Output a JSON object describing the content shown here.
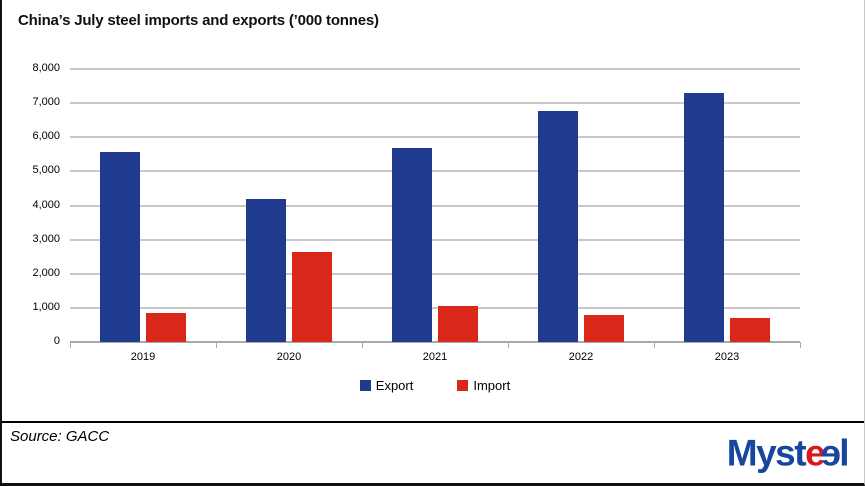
{
  "title": "China’s July steel imports and exports (’000 tonnes)",
  "chart_data": {
    "type": "bar",
    "title": "China’s July steel imports and exports (’000 tonnes)",
    "categories": [
      "2019",
      "2020",
      "2021",
      "2022",
      "2023"
    ],
    "series": [
      {
        "name": "Export",
        "color": "#1F3A8E",
        "values": [
          5560,
          4180,
          5680,
          6770,
          7310
        ]
      },
      {
        "name": "Import",
        "color": "#D9281A",
        "values": [
          850,
          2630,
          1050,
          790,
          690
        ]
      }
    ],
    "xlabel": "",
    "ylabel": "",
    "ylim": [
      0,
      8000
    ],
    "ytick_step": 1000,
    "ytick_labels": [
      "0",
      "1,000",
      "2,000",
      "3,000",
      "4,000",
      "5,000",
      "6,000",
      "7,000",
      "8,000"
    ],
    "grid": true,
    "gridline_color": "#C8C8C8",
    "axis_color": "#A9A9A9",
    "legend_position": "bottom-center"
  },
  "legend": {
    "export_label": "Export",
    "import_label": "Import"
  },
  "footer": {
    "source": "Source: GACC",
    "logo": {
      "part1": "Myst",
      "part2": "e",
      "part3": "e",
      "part4": "l",
      "blue": "#17469E",
      "red": "#D7191F"
    }
  }
}
